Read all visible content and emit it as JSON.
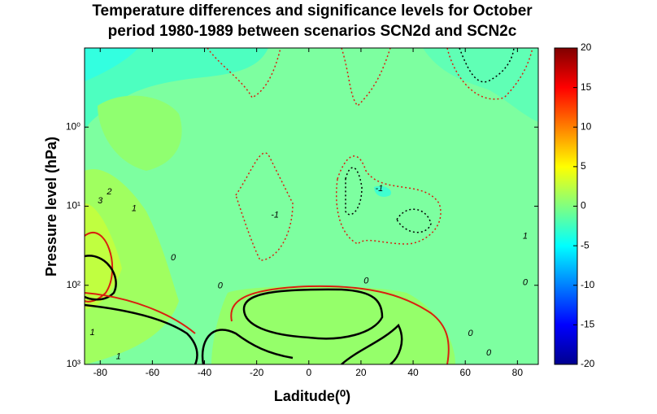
{
  "chart_data": {
    "type": "contour",
    "title": "Temperature differences and significance levels for October",
    "subtitle": "period 1980-1989  between scenarios SCN2d and SCN2c",
    "x_label": "Laditude(⁰)",
    "y_label": "Pressure level (hPa)",
    "xlim": [
      -86,
      88
    ],
    "xticks": [
      -80,
      -60,
      -40,
      -20,
      0,
      20,
      40,
      60,
      80
    ],
    "ylim": [
      1000,
      0.1
    ],
    "y_log": true,
    "yticks": [
      {
        "value": 1,
        "label": "10⁰"
      },
      {
        "value": 10,
        "label": "10¹"
      },
      {
        "value": 100,
        "label": "10²"
      },
      {
        "value": 1000,
        "label": "10³"
      }
    ],
    "colorbar": {
      "lim": [
        -20,
        20
      ],
      "ticks": [
        -20,
        -15,
        -10,
        -5,
        0,
        5,
        10,
        15,
        20
      ],
      "colormap": "jet"
    },
    "contour_labels": [
      {
        "value": 3,
        "x": -80,
        "y": 8.6
      },
      {
        "value": 2,
        "x": -76.5,
        "y": 6.6
      },
      {
        "value": 1,
        "x": -67,
        "y": 10.7
      },
      {
        "value": -1,
        "x": 27,
        "y": 6
      },
      {
        "value": -1,
        "x": -13,
        "y": 13
      },
      {
        "value": 0,
        "x": -52,
        "y": 45
      },
      {
        "value": 0,
        "x": -34,
        "y": 102
      },
      {
        "value": 0,
        "x": 22,
        "y": 89
      },
      {
        "value": 1,
        "x": 83,
        "y": 24
      },
      {
        "value": 0,
        "x": 83,
        "y": 93
      },
      {
        "value": 1,
        "x": -83,
        "y": 400
      },
      {
        "value": 1,
        "x": -73,
        "y": 800
      },
      {
        "value": 0,
        "x": 62,
        "y": 410
      },
      {
        "value": 0,
        "x": 69,
        "y": 720
      }
    ]
  }
}
